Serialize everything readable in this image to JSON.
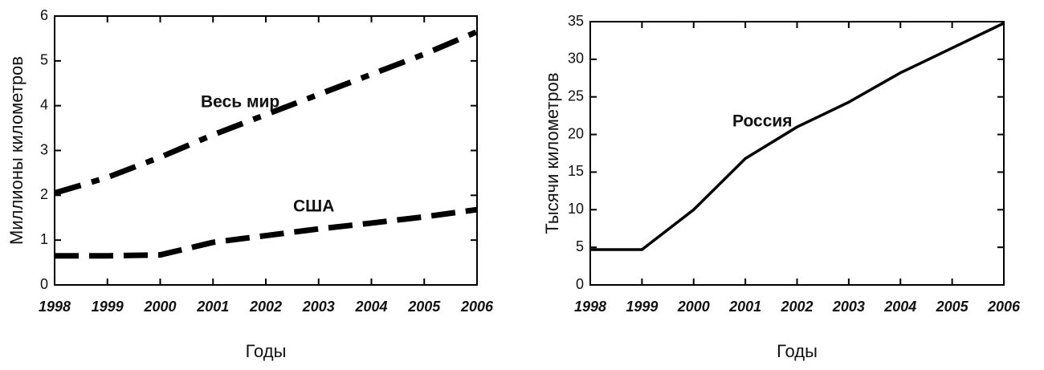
{
  "chart_data": [
    {
      "type": "line",
      "x_label": "Годы",
      "y_label": "Миллионы километров",
      "x": [
        1998,
        1999,
        2000,
        2001,
        2002,
        2003,
        2004,
        2005,
        2006
      ],
      "xlim": [
        1998,
        2006
      ],
      "xticks": [
        1998,
        1999,
        2000,
        2001,
        2002,
        2003,
        2004,
        2005,
        2006
      ],
      "ylim": [
        0,
        6
      ],
      "yticks": [
        0,
        1,
        2,
        3,
        4,
        5,
        6
      ],
      "series": [
        {
          "name": "Весь мир",
          "color": "#000000",
          "style": "dash-dot",
          "values": [
            2.05,
            2.4,
            2.85,
            3.35,
            3.8,
            4.25,
            4.7,
            5.15,
            5.65
          ]
        },
        {
          "name": "США",
          "color": "#000000",
          "style": "dashed",
          "values": [
            0.65,
            0.65,
            0.67,
            0.95,
            1.1,
            1.25,
            1.38,
            1.52,
            1.68
          ]
        }
      ]
    },
    {
      "type": "line",
      "x_label": "Годы",
      "y_label": "Тысячи километров",
      "x": [
        1998,
        1999,
        2000,
        2001,
        2002,
        2003,
        2004,
        2005,
        2006
      ],
      "xlim": [
        1998,
        2006
      ],
      "xticks": [
        1998,
        1999,
        2000,
        2001,
        2002,
        2003,
        2004,
        2005,
        2006
      ],
      "ylim": [
        0,
        35
      ],
      "yticks": [
        0,
        5,
        10,
        15,
        20,
        25,
        30,
        35
      ],
      "series": [
        {
          "name": "Россия",
          "color": "#000000",
          "style": "solid",
          "values": [
            4.7,
            4.7,
            10,
            16.8,
            21,
            24.3,
            28.2,
            31.5,
            34.8
          ]
        }
      ]
    }
  ]
}
